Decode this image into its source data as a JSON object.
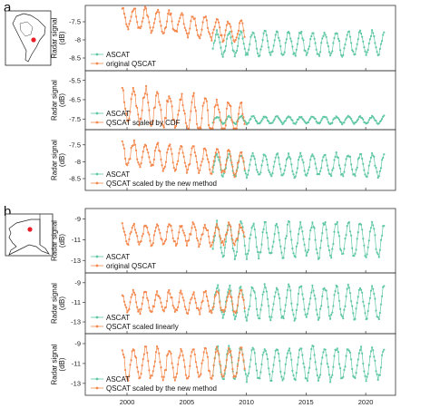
{
  "panel_labels": [
    "a",
    "b"
  ],
  "colors": {
    "ascat": "#5ec7a3",
    "qscat": "#f4874b",
    "map_dot": "#e8202a"
  },
  "maps": [
    {
      "name": "South America",
      "region_icon": "south-america-map-icon"
    },
    {
      "name": "Alaska",
      "region_icon": "alaska-map-icon"
    }
  ],
  "chart_data": [
    {
      "type": "line",
      "panel": "a",
      "ylabel": "Radar signal\n(dB)",
      "yticks": [
        -7.5,
        -8,
        -8.5
      ],
      "ylim": [
        -8.85,
        -7.05
      ],
      "xlim": [
        1996.5,
        2022.5
      ],
      "series": [
        {
          "name": "ASCAT",
          "start": 2007.2,
          "end": 2021.6,
          "mean": -8.1,
          "amp": 0.32,
          "period": 1.0,
          "noise": 0.06
        },
        {
          "name": "original QSCAT",
          "start": 1999.6,
          "end": 2009.9,
          "mean": -7.35,
          "amp": 0.28,
          "period": 1.0,
          "noise": 0.08,
          "trend": -0.045
        }
      ],
      "legend": [
        "ASCAT",
        "original QSCAT"
      ]
    },
    {
      "type": "line",
      "panel": "a",
      "ylabel": "Radar signal\n(dB)",
      "yticks": [
        -5.5,
        -6.5,
        -7.5
      ],
      "ylim": [
        -8.05,
        -5.0
      ],
      "xlim": [
        1996.5,
        2022.5
      ],
      "series": [
        {
          "name": "ASCAT",
          "start": 2007.2,
          "end": 2021.6,
          "mean": -7.55,
          "amp": 0.18,
          "period": 1.0,
          "noise": 0.05
        },
        {
          "name": "QSCAT scaled by CDF",
          "start": 1999.6,
          "end": 2009.9,
          "mean": -6.7,
          "amp": 0.9,
          "period": 1.0,
          "noise": 0.25,
          "trend": -0.09
        }
      ],
      "legend": [
        "ASCAT",
        "QSCAT scaled by CDF"
      ]
    },
    {
      "type": "line",
      "panel": "a",
      "ylabel": "Radar signal\n(dB)",
      "yticks": [
        -7.5,
        -8,
        -8.5
      ],
      "ylim": [
        -8.85,
        -7.05
      ],
      "xlim": [
        1996.5,
        2022.5
      ],
      "series": [
        {
          "name": "ASCAT",
          "start": 2007.2,
          "end": 2021.6,
          "mean": -8.1,
          "amp": 0.32,
          "period": 1.0,
          "noise": 0.06
        },
        {
          "name": "QSCAT scaled by the new method",
          "start": 1999.6,
          "end": 2009.9,
          "mean": -7.75,
          "amp": 0.35,
          "period": 1.0,
          "noise": 0.08,
          "trend": -0.03
        }
      ],
      "legend": [
        "ASCAT",
        "QSCAT scaled by the new method"
      ]
    },
    {
      "type": "line",
      "panel": "b",
      "ylabel": "Radar signal\n(dB)",
      "yticks": [
        -9,
        -11,
        -13
      ],
      "ylim": [
        -14.2,
        -8.0
      ],
      "xlim": [
        1996.5,
        2022.5
      ],
      "series": [
        {
          "name": "ASCAT",
          "start": 2007.2,
          "end": 2021.6,
          "mean": -11.0,
          "amp": 1.6,
          "period": 1.0,
          "noise": 0.3
        },
        {
          "name": "original QSCAT",
          "start": 1999.6,
          "end": 2009.9,
          "mean": -10.5,
          "amp": 0.9,
          "period": 1.0,
          "noise": 0.3
        }
      ],
      "legend": [
        "ASCAT",
        "original QSCAT"
      ]
    },
    {
      "type": "line",
      "panel": "b",
      "ylabel": "Radar signal\n(dB)",
      "yticks": [
        -9,
        -11,
        -13
      ],
      "ylim": [
        -14.2,
        -8.0
      ],
      "xlim": [
        1996.5,
        2022.5
      ],
      "series": [
        {
          "name": "ASCAT",
          "start": 2007.2,
          "end": 2021.6,
          "mean": -11.0,
          "amp": 1.6,
          "period": 1.0,
          "noise": 0.3
        },
        {
          "name": "QSCAT scaled linearly",
          "start": 1999.6,
          "end": 2009.9,
          "mean": -11.0,
          "amp": 1.0,
          "period": 1.0,
          "noise": 0.3
        }
      ],
      "legend": [
        "ASCAT",
        "QSCAT scaled linearly"
      ]
    },
    {
      "type": "line",
      "panel": "b",
      "ylabel": "Radar signal\n(dB)",
      "yticks": [
        -9,
        -11,
        -13
      ],
      "ylim": [
        -14.2,
        -8.0
      ],
      "xlim": [
        1996.5,
        2022.5
      ],
      "series": [
        {
          "name": "ASCAT",
          "start": 2007.2,
          "end": 2021.6,
          "mean": -11.0,
          "amp": 1.6,
          "period": 1.0,
          "noise": 0.3
        },
        {
          "name": "QSCAT scaled by the new method",
          "start": 1999.6,
          "end": 2009.9,
          "mean": -11.0,
          "amp": 1.5,
          "period": 1.0,
          "noise": 0.35
        }
      ],
      "legend": [
        "ASCAT",
        "QSCAT scaled by the new method"
      ]
    }
  ],
  "xticks": [
    2000,
    2005,
    2010,
    2015,
    2020
  ]
}
